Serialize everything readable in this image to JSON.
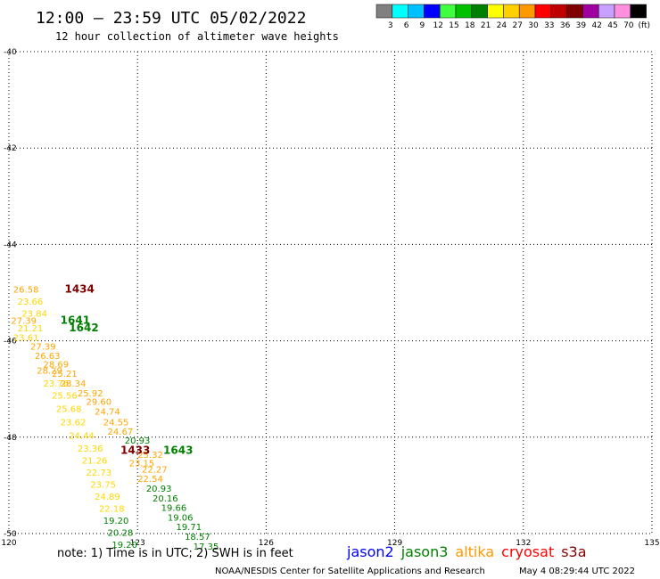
{
  "header": {
    "title": "12:00 — 23:59 UTC 05/02/2022",
    "subtitle": "12 hour collection of altimeter wave heights"
  },
  "legend": {
    "unit": "(ft)",
    "bins": [
      {
        "label": "3",
        "color": "#808080"
      },
      {
        "label": "6",
        "color": "#00ffff"
      },
      {
        "label": "9",
        "color": "#00c0ff"
      },
      {
        "label": "12",
        "color": "#0000ff"
      },
      {
        "label": "15",
        "color": "#40ff40"
      },
      {
        "label": "18",
        "color": "#00c000"
      },
      {
        "label": "21",
        "color": "#008000"
      },
      {
        "label": "24",
        "color": "#ffff00"
      },
      {
        "label": "27",
        "color": "#ffd000"
      },
      {
        "label": "30",
        "color": "#ff9900"
      },
      {
        "label": "33",
        "color": "#ff0000"
      },
      {
        "label": "36",
        "color": "#c00000"
      },
      {
        "label": "39",
        "color": "#800000"
      },
      {
        "label": "42",
        "color": "#a000a0"
      },
      {
        "label": "45",
        "color": "#c8a0ff"
      },
      {
        "label": "70",
        "color": "#ff90e0"
      },
      {
        "label": "",
        "color": "#000000"
      }
    ]
  },
  "map": {
    "lon_range": [
      120,
      135
    ],
    "lat_range": [
      -50,
      -40
    ],
    "lon_ticks": [
      "120",
      "123",
      "126",
      "129",
      "132",
      "135"
    ],
    "lat_ticks": [
      "-40",
      "-42",
      "-44",
      "-46",
      "-48",
      "-50"
    ],
    "grid": true
  },
  "passes": [
    {
      "label": "1434",
      "lon": 121.3,
      "lat": -45.0,
      "color": "#800000"
    },
    {
      "label": "1641",
      "lon": 121.2,
      "lat": -45.65,
      "color": "#008000"
    },
    {
      "label": "1642",
      "lon": 121.4,
      "lat": -45.8,
      "color": "#008000"
    },
    {
      "label": "1433",
      "lon": 122.6,
      "lat": -48.35,
      "color": "#800000"
    },
    {
      "label": "1643",
      "lon": 123.6,
      "lat": -48.35,
      "color": "#008000"
    }
  ],
  "measurements": [
    {
      "v": "26.58",
      "lon": 120.1,
      "lat": -45.0,
      "color": "#ffa500"
    },
    {
      "v": "23.66",
      "lon": 120.2,
      "lat": -45.25,
      "color": "#ffd700"
    },
    {
      "v": "23.84",
      "lon": 120.3,
      "lat": -45.5,
      "color": "#ffd700"
    },
    {
      "v": "27.39",
      "lon": 120.05,
      "lat": -45.65,
      "color": "#ffa500"
    },
    {
      "v": "21.21",
      "lon": 120.2,
      "lat": -45.8,
      "color": "#ffd700"
    },
    {
      "v": "23.61",
      "lon": 120.1,
      "lat": -46.0,
      "color": "#ffd700"
    },
    {
      "v": "27.39",
      "lon": 120.5,
      "lat": -46.18,
      "color": "#ffa500"
    },
    {
      "v": "26.63",
      "lon": 120.6,
      "lat": -46.38,
      "color": "#ffa500"
    },
    {
      "v": "28.69",
      "lon": 120.8,
      "lat": -46.55,
      "color": "#ffa500"
    },
    {
      "v": "28.29",
      "lon": 120.65,
      "lat": -46.68,
      "color": "#ffa500"
    },
    {
      "v": "25.21",
      "lon": 121.0,
      "lat": -46.75,
      "color": "#ffa500"
    },
    {
      "v": "23.76",
      "lon": 120.8,
      "lat": -46.95,
      "color": "#ffd700"
    },
    {
      "v": "28.34",
      "lon": 121.2,
      "lat": -46.95,
      "color": "#ffa500"
    },
    {
      "v": "25.92",
      "lon": 121.6,
      "lat": -47.15,
      "color": "#ffa500"
    },
    {
      "v": "25.56",
      "lon": 121.0,
      "lat": -47.2,
      "color": "#ffd700"
    },
    {
      "v": "29.60",
      "lon": 121.8,
      "lat": -47.33,
      "color": "#ffa500"
    },
    {
      "v": "25.68",
      "lon": 121.1,
      "lat": -47.48,
      "color": "#ffd700"
    },
    {
      "v": "24.74",
      "lon": 122.0,
      "lat": -47.53,
      "color": "#ffa500"
    },
    {
      "v": "23.62",
      "lon": 121.2,
      "lat": -47.75,
      "color": "#ffd700"
    },
    {
      "v": "24.55",
      "lon": 122.2,
      "lat": -47.75,
      "color": "#ffa500"
    },
    {
      "v": "24.44",
      "lon": 121.4,
      "lat": -48.03,
      "color": "#ffd700"
    },
    {
      "v": "24.67",
      "lon": 122.3,
      "lat": -47.95,
      "color": "#ffa500"
    },
    {
      "v": "20.93",
      "lon": 122.7,
      "lat": -48.13,
      "color": "#008000"
    },
    {
      "v": "23.36",
      "lon": 121.6,
      "lat": -48.3,
      "color": "#ffd700"
    },
    {
      "v": "21.26",
      "lon": 121.7,
      "lat": -48.55,
      "color": "#ffd700"
    },
    {
      "v": "22.73",
      "lon": 121.8,
      "lat": -48.8,
      "color": "#ffd700"
    },
    {
      "v": "23.75",
      "lon": 121.9,
      "lat": -49.05,
      "color": "#ffd700"
    },
    {
      "v": "24.89",
      "lon": 122.0,
      "lat": -49.3,
      "color": "#ffd700"
    },
    {
      "v": "22.18",
      "lon": 122.1,
      "lat": -49.55,
      "color": "#ffd700"
    },
    {
      "v": "19.20",
      "lon": 122.2,
      "lat": -49.8,
      "color": "#008000"
    },
    {
      "v": "20.28",
      "lon": 122.3,
      "lat": -50.05,
      "color": "#008000"
    },
    {
      "v": "19.20",
      "lon": 122.4,
      "lat": -50.3,
      "color": "#008000"
    },
    {
      "v": "25.32",
      "lon": 123.0,
      "lat": -48.43,
      "color": "#ffa500"
    },
    {
      "v": "23.15",
      "lon": 122.8,
      "lat": -48.6,
      "color": "#ffa500"
    },
    {
      "v": "22.27",
      "lon": 123.1,
      "lat": -48.73,
      "color": "#ffa500"
    },
    {
      "v": "22.54",
      "lon": 123.0,
      "lat": -48.93,
      "color": "#ffa500"
    },
    {
      "v": "20.93",
      "lon": 123.2,
      "lat": -49.13,
      "color": "#008000"
    },
    {
      "v": "20.16",
      "lon": 123.35,
      "lat": -49.33,
      "color": "#008000"
    },
    {
      "v": "19.66",
      "lon": 123.55,
      "lat": -49.53,
      "color": "#008000"
    },
    {
      "v": "19.06",
      "lon": 123.7,
      "lat": -49.73,
      "color": "#008000"
    },
    {
      "v": "19.71",
      "lon": 123.9,
      "lat": -49.93,
      "color": "#008000"
    },
    {
      "v": "18.57",
      "lon": 124.1,
      "lat": -50.13,
      "color": "#008000"
    },
    {
      "v": "17.35",
      "lon": 124.3,
      "lat": -50.33,
      "color": "#008000"
    }
  ],
  "footer": {
    "note": "note:  1) Time is in UTC; 2) SWH is in feet",
    "satellites": [
      {
        "name": "jason2",
        "color": "#0000ff"
      },
      {
        "name": "jason3",
        "color": "#008000"
      },
      {
        "name": "altika",
        "color": "#ff9900"
      },
      {
        "name": "cryosat",
        "color": "#ff0000"
      },
      {
        "name": "s3a",
        "color": "#800000"
      }
    ],
    "credit": "NOAA/NESDIS Center for Satellite Applications and Research",
    "timestamp": "May  4 08:29:44 UTC 2022"
  }
}
